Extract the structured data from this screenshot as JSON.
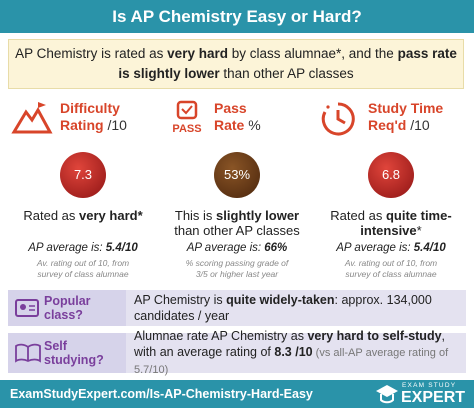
{
  "header": {
    "title": "Is AP Chemistry Easy or Hard?"
  },
  "intro": [
    "AP Chemistry is rated as ",
    "very hard",
    " by class alumnae*, and the ",
    "pass rate is slightly lower",
    " than other AP classes"
  ],
  "columns": [
    {
      "label": "Difficulty",
      "label2": "Rating",
      "unit": "/10",
      "value": "7.3",
      "main": [
        "Rated as ",
        "very hard*"
      ],
      "avg": [
        "AP average is: ",
        "5.4/10"
      ],
      "note": "Av. rating out of 10, from survey of class alumnae"
    },
    {
      "label": "Pass",
      "label2": "Rate",
      "unit": "%",
      "icon_text": "PASS",
      "value": "53%",
      "main": [
        "This is ",
        "slightly lower",
        "than other AP classes"
      ],
      "avg": [
        "AP average is: ",
        "66%"
      ],
      "note": "% scoring passing grade of 3/5 or higher last year"
    },
    {
      "label": "Study Time",
      "label2": "Req'd",
      "unit": "/10",
      "value": "6.8",
      "main": [
        "Rated as ",
        "quite time-intensive",
        "*"
      ],
      "avg": [
        "AP average is: ",
        "5.4/10"
      ],
      "note": "Av. rating out of 10, from survey of class alumnae"
    }
  ],
  "rows": [
    {
      "label": "Popular class?",
      "text": [
        "AP Chemistry is ",
        "quite widely-taken",
        ": approx. 134,000 candidates / year"
      ]
    },
    {
      "label": "Self studying?",
      "text": [
        "Alumnae rate AP Chemistry as ",
        "very hard to self-study",
        ", with an average rating of ",
        "8.3 /10",
        " (vs all-AP average rating of 5.7/10)"
      ]
    }
  ],
  "footer": {
    "url": "ExamStudyExpert.com/Is-AP-Chemistry-Hard-Easy",
    "logo_top": "EXAM STUDY",
    "logo_bottom": "EXPERT"
  }
}
